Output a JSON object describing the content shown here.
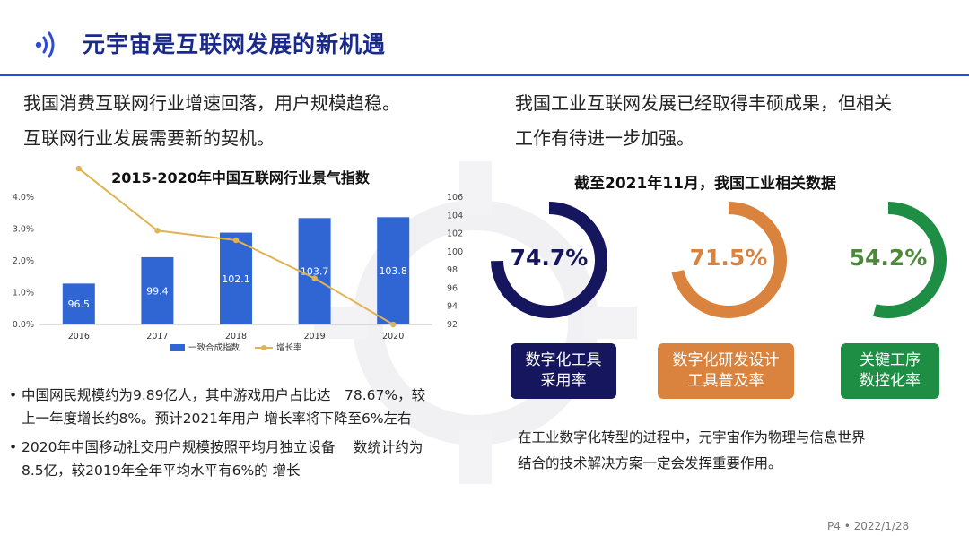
{
  "header": {
    "title": "元宇宙是互联网发展的新机遇",
    "logo_icon": "sound-wave-icon"
  },
  "left": {
    "intro_line1": "我国消费互联网行业增速回落，用户规模趋稳。",
    "intro_line2": "互联网行业发展需要新的契机。"
  },
  "right": {
    "intro_line1": "我国工业互联网发展已经取得丰硕成果，但相关",
    "intro_line2": "工作有待进一步加强。",
    "heading": "截至2021年11月，我国工业相关数据",
    "summary_line1": "在工业数字化转型的进程中，元宇宙作为物理与信息世界",
    "summary_line2": "结合的技术解决方案一定会发挥重要作用。"
  },
  "gauges": [
    {
      "value": "74.7%",
      "fraction": 0.747,
      "label_line1": "数字化工具",
      "label_line2": "采用率",
      "color": "#15165e",
      "text_color": "#15165e"
    },
    {
      "value": "71.5%",
      "fraction": 0.715,
      "label_line1": "数字化研发设计",
      "label_line2": "工具普及率",
      "color": "#d9833e",
      "text_color": "#d9833e"
    },
    {
      "value": "54.2%",
      "fraction": 0.542,
      "label_line1": "关键工序",
      "label_line2": "数控化率",
      "color": "#1f8e45",
      "text_color": "#4c8a3a"
    }
  ],
  "chart_data": {
    "type": "bar",
    "title": "2015-2020年中国互联网行业景气指数",
    "categories": [
      "2016",
      "2017",
      "2018",
      "2019",
      "2020"
    ],
    "series": [
      {
        "name": "一致合成指数",
        "kind": "bar",
        "axis": "right",
        "values": [
          96.5,
          99.4,
          102.1,
          103.7,
          103.8
        ],
        "data_labels": [
          "96.5",
          "99.4",
          "102.1",
          "103.7",
          "103.8"
        ],
        "color": "#2f66d4"
      },
      {
        "name": "增长率",
        "kind": "line",
        "axis": "left",
        "values": [
          4.9,
          2.95,
          2.65,
          1.45,
          0.0
        ],
        "color": "#e0b450"
      }
    ],
    "y_left": {
      "min": 0,
      "max": 4,
      "ticks": [
        "0.0%",
        "1.0%",
        "2.0%",
        "3.0%",
        "4.0%"
      ]
    },
    "y_right": {
      "min": 92,
      "max": 106,
      "ticks": [
        "92",
        "94",
        "96",
        "98",
        "100",
        "102",
        "104",
        "106"
      ]
    },
    "legend_position": "bottom"
  },
  "bullets": [
    {
      "line1": "中国网民规模约为9.89亿人，其中游戏用户占比达　78.67%，较",
      "line2": "上一年度增长约8%。预计2021年用户 增长率将下降至6%左右"
    },
    {
      "line1": "2020年中国移动社交用户规模按照平均月独立设备　 数统计约为",
      "line2": "8.5亿，较2019年全年平均水平有6%的 增长"
    }
  ],
  "footer": {
    "page": "P4",
    "date": "2022/1/28"
  }
}
